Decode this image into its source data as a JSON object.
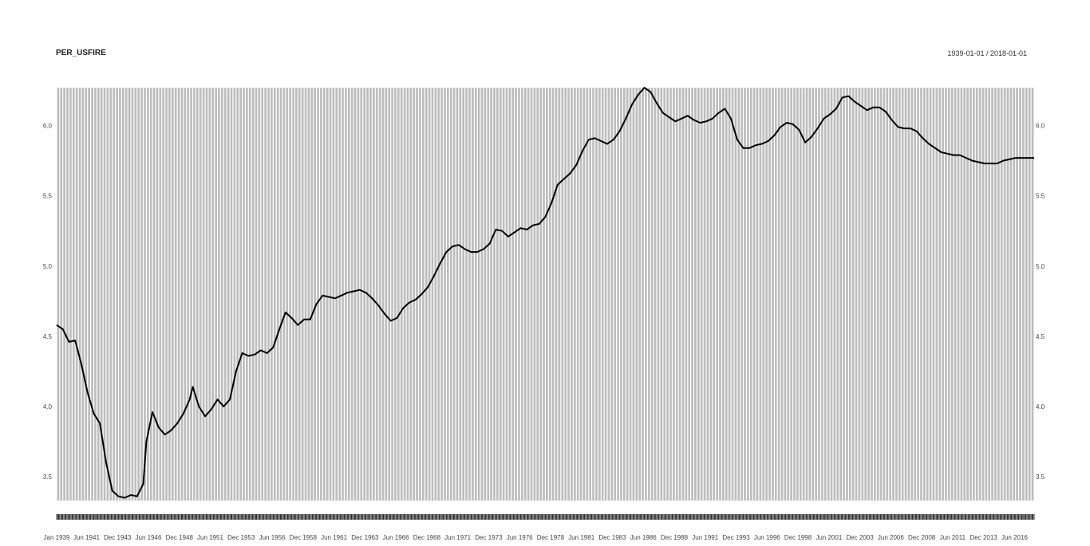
{
  "header": {
    "title": "PER_USFIRE",
    "date_range": "1939-01-01 / 2018-01-01"
  },
  "colors": {
    "panel": "#bdbdbd",
    "grid": "#ffffff",
    "line": "#000000",
    "text": "#444444"
  },
  "chart_data": {
    "type": "line",
    "title": "PER_USFIRE",
    "xlabel": "",
    "ylabel": "",
    "grid": true,
    "ylim": [
      3.33,
      6.27
    ],
    "xlim": [
      "1939-01-01",
      "2018-01-01"
    ],
    "y_ticks": [
      "3.5",
      "4.0",
      "4.5",
      "5.0",
      "5.5",
      "6.0"
    ],
    "x_ticks": [
      {
        "label": "Jan 1939",
        "date": "1939-01-01"
      },
      {
        "label": "Jun 1941",
        "date": "1941-06-01"
      },
      {
        "label": "Dec 1943",
        "date": "1943-12-01"
      },
      {
        "label": "Jun 1946",
        "date": "1946-06-01"
      },
      {
        "label": "Dec 1948",
        "date": "1948-12-01"
      },
      {
        "label": "Jun 1951",
        "date": "1951-06-01"
      },
      {
        "label": "Dec 1953",
        "date": "1953-12-01"
      },
      {
        "label": "Jun 1956",
        "date": "1956-06-01"
      },
      {
        "label": "Dec 1958",
        "date": "1958-12-01"
      },
      {
        "label": "Jun 1961",
        "date": "1961-06-01"
      },
      {
        "label": "Dec 1963",
        "date": "1963-12-01"
      },
      {
        "label": "Jun 1966",
        "date": "1966-06-01"
      },
      {
        "label": "Dec 1968",
        "date": "1968-12-01"
      },
      {
        "label": "Jun 1971",
        "date": "1971-06-01"
      },
      {
        "label": "Dec 1973",
        "date": "1973-12-01"
      },
      {
        "label": "Jun 1976",
        "date": "1976-06-01"
      },
      {
        "label": "Dec 1978",
        "date": "1978-12-01"
      },
      {
        "label": "Jun 1981",
        "date": "1981-06-01"
      },
      {
        "label": "Dec 1983",
        "date": "1983-12-01"
      },
      {
        "label": "Jun 1986",
        "date": "1986-06-01"
      },
      {
        "label": "Dec 1988",
        "date": "1988-12-01"
      },
      {
        "label": "Jun 1991",
        "date": "1991-06-01"
      },
      {
        "label": "Dec 1993",
        "date": "1993-12-01"
      },
      {
        "label": "Jun 1996",
        "date": "1996-06-01"
      },
      {
        "label": "Dec 1998",
        "date": "1998-12-01"
      },
      {
        "label": "Jun 2001",
        "date": "2001-06-01"
      },
      {
        "label": "Dec 2003",
        "date": "2003-12-01"
      },
      {
        "label": "Jun 2006",
        "date": "2006-06-01"
      },
      {
        "label": "Dec 2008",
        "date": "2008-12-01"
      },
      {
        "label": "Jun 2011",
        "date": "2011-06-01"
      },
      {
        "label": "Dec 2013",
        "date": "2013-12-01"
      },
      {
        "label": "Jun 2016",
        "date": "2016-06-01"
      }
    ],
    "series": [
      {
        "points": [
          [
            "1939-01-01",
            4.58
          ],
          [
            "1939-07-01",
            4.55
          ],
          [
            "1940-01-01",
            4.46
          ],
          [
            "1940-07-01",
            4.47
          ],
          [
            "1941-01-01",
            4.3
          ],
          [
            "1941-07-01",
            4.1
          ],
          [
            "1942-01-01",
            3.95
          ],
          [
            "1942-07-01",
            3.88
          ],
          [
            "1943-01-01",
            3.6
          ],
          [
            "1943-07-01",
            3.4
          ],
          [
            "1944-01-01",
            3.36
          ],
          [
            "1944-07-01",
            3.35
          ],
          [
            "1945-01-01",
            3.37
          ],
          [
            "1945-07-01",
            3.36
          ],
          [
            "1946-01-01",
            3.45
          ],
          [
            "1946-04-01",
            3.75
          ],
          [
            "1946-10-01",
            3.96
          ],
          [
            "1947-04-01",
            3.85
          ],
          [
            "1947-10-01",
            3.8
          ],
          [
            "1948-04-01",
            3.83
          ],
          [
            "1948-10-01",
            3.88
          ],
          [
            "1949-04-01",
            3.95
          ],
          [
            "1949-10-01",
            4.05
          ],
          [
            "1950-01-01",
            4.14
          ],
          [
            "1950-07-01",
            4.0
          ],
          [
            "1951-01-01",
            3.93
          ],
          [
            "1951-07-01",
            3.98
          ],
          [
            "1952-01-01",
            4.05
          ],
          [
            "1952-07-01",
            4.0
          ],
          [
            "1953-01-01",
            4.05
          ],
          [
            "1953-07-01",
            4.25
          ],
          [
            "1954-01-01",
            4.38
          ],
          [
            "1954-07-01",
            4.36
          ],
          [
            "1955-01-01",
            4.37
          ],
          [
            "1955-07-01",
            4.4
          ],
          [
            "1956-01-01",
            4.38
          ],
          [
            "1956-07-01",
            4.42
          ],
          [
            "1957-01-01",
            4.55
          ],
          [
            "1957-07-01",
            4.67
          ],
          [
            "1958-01-01",
            4.63
          ],
          [
            "1958-07-01",
            4.58
          ],
          [
            "1959-01-01",
            4.62
          ],
          [
            "1959-07-01",
            4.62
          ],
          [
            "1960-01-01",
            4.73
          ],
          [
            "1960-07-01",
            4.79
          ],
          [
            "1961-01-01",
            4.78
          ],
          [
            "1961-07-01",
            4.77
          ],
          [
            "1962-01-01",
            4.79
          ],
          [
            "1962-07-01",
            4.81
          ],
          [
            "1963-01-01",
            4.82
          ],
          [
            "1963-07-01",
            4.83
          ],
          [
            "1964-01-01",
            4.81
          ],
          [
            "1964-07-01",
            4.77
          ],
          [
            "1965-01-01",
            4.72
          ],
          [
            "1965-07-01",
            4.66
          ],
          [
            "1966-01-01",
            4.61
          ],
          [
            "1966-07-01",
            4.63
          ],
          [
            "1967-01-01",
            4.7
          ],
          [
            "1967-07-01",
            4.74
          ],
          [
            "1968-01-01",
            4.76
          ],
          [
            "1968-07-01",
            4.8
          ],
          [
            "1969-01-01",
            4.85
          ],
          [
            "1969-07-01",
            4.93
          ],
          [
            "1970-01-01",
            5.02
          ],
          [
            "1970-07-01",
            5.1
          ],
          [
            "1971-01-01",
            5.14
          ],
          [
            "1971-07-01",
            5.15
          ],
          [
            "1972-01-01",
            5.12
          ],
          [
            "1972-07-01",
            5.1
          ],
          [
            "1973-01-01",
            5.1
          ],
          [
            "1973-07-01",
            5.12
          ],
          [
            "1974-01-01",
            5.16
          ],
          [
            "1974-07-01",
            5.26
          ],
          [
            "1975-01-01",
            5.25
          ],
          [
            "1975-07-01",
            5.21
          ],
          [
            "1976-01-01",
            5.24
          ],
          [
            "1976-07-01",
            5.27
          ],
          [
            "1977-01-01",
            5.26
          ],
          [
            "1977-07-01",
            5.29
          ],
          [
            "1978-01-01",
            5.3
          ],
          [
            "1978-07-01",
            5.35
          ],
          [
            "1979-01-01",
            5.45
          ],
          [
            "1979-07-01",
            5.58
          ],
          [
            "1980-01-01",
            5.62
          ],
          [
            "1980-07-01",
            5.66
          ],
          [
            "1981-01-01",
            5.72
          ],
          [
            "1981-07-01",
            5.82
          ],
          [
            "1982-01-01",
            5.9
          ],
          [
            "1982-07-01",
            5.91
          ],
          [
            "1983-01-01",
            5.89
          ],
          [
            "1983-07-01",
            5.87
          ],
          [
            "1984-01-01",
            5.9
          ],
          [
            "1984-07-01",
            5.96
          ],
          [
            "1985-01-01",
            6.05
          ],
          [
            "1985-07-01",
            6.15
          ],
          [
            "1986-01-01",
            6.22
          ],
          [
            "1986-07-01",
            6.27
          ],
          [
            "1987-01-01",
            6.24
          ],
          [
            "1987-07-01",
            6.16
          ],
          [
            "1988-01-01",
            6.09
          ],
          [
            "1988-07-01",
            6.06
          ],
          [
            "1989-01-01",
            6.03
          ],
          [
            "1989-07-01",
            6.05
          ],
          [
            "1990-01-01",
            6.07
          ],
          [
            "1990-07-01",
            6.04
          ],
          [
            "1991-01-01",
            6.02
          ],
          [
            "1991-07-01",
            6.03
          ],
          [
            "1992-01-01",
            6.05
          ],
          [
            "1992-07-01",
            6.09
          ],
          [
            "1993-01-01",
            6.12
          ],
          [
            "1993-07-01",
            6.05
          ],
          [
            "1994-01-01",
            5.9
          ],
          [
            "1994-07-01",
            5.84
          ],
          [
            "1995-01-01",
            5.84
          ],
          [
            "1995-07-01",
            5.86
          ],
          [
            "1996-01-01",
            5.87
          ],
          [
            "1996-07-01",
            5.89
          ],
          [
            "1997-01-01",
            5.93
          ],
          [
            "1997-07-01",
            5.99
          ],
          [
            "1998-01-01",
            6.02
          ],
          [
            "1998-07-01",
            6.01
          ],
          [
            "1999-01-01",
            5.97
          ],
          [
            "1999-07-01",
            5.88
          ],
          [
            "2000-01-01",
            5.92
          ],
          [
            "2000-07-01",
            5.98
          ],
          [
            "2001-01-01",
            6.05
          ],
          [
            "2001-07-01",
            6.08
          ],
          [
            "2002-01-01",
            6.12
          ],
          [
            "2002-07-01",
            6.2
          ],
          [
            "2003-01-01",
            6.21
          ],
          [
            "2003-07-01",
            6.17
          ],
          [
            "2004-01-01",
            6.14
          ],
          [
            "2004-07-01",
            6.11
          ],
          [
            "2005-01-01",
            6.13
          ],
          [
            "2005-07-01",
            6.13
          ],
          [
            "2006-01-01",
            6.1
          ],
          [
            "2006-07-01",
            6.04
          ],
          [
            "2007-01-01",
            5.99
          ],
          [
            "2007-07-01",
            5.98
          ],
          [
            "2008-01-01",
            5.98
          ],
          [
            "2008-07-01",
            5.96
          ],
          [
            "2009-01-01",
            5.91
          ],
          [
            "2009-07-01",
            5.87
          ],
          [
            "2010-01-01",
            5.84
          ],
          [
            "2010-07-01",
            5.81
          ],
          [
            "2011-01-01",
            5.8
          ],
          [
            "2011-07-01",
            5.79
          ],
          [
            "2012-01-01",
            5.79
          ],
          [
            "2012-07-01",
            5.77
          ],
          [
            "2013-01-01",
            5.75
          ],
          [
            "2013-07-01",
            5.74
          ],
          [
            "2014-01-01",
            5.73
          ],
          [
            "2014-07-01",
            5.73
          ],
          [
            "2015-01-01",
            5.73
          ],
          [
            "2015-07-01",
            5.75
          ],
          [
            "2016-01-01",
            5.76
          ],
          [
            "2016-07-01",
            5.77
          ],
          [
            "2017-01-01",
            5.77
          ],
          [
            "2017-07-01",
            5.77
          ],
          [
            "2018-01-01",
            5.77
          ]
        ]
      }
    ]
  }
}
